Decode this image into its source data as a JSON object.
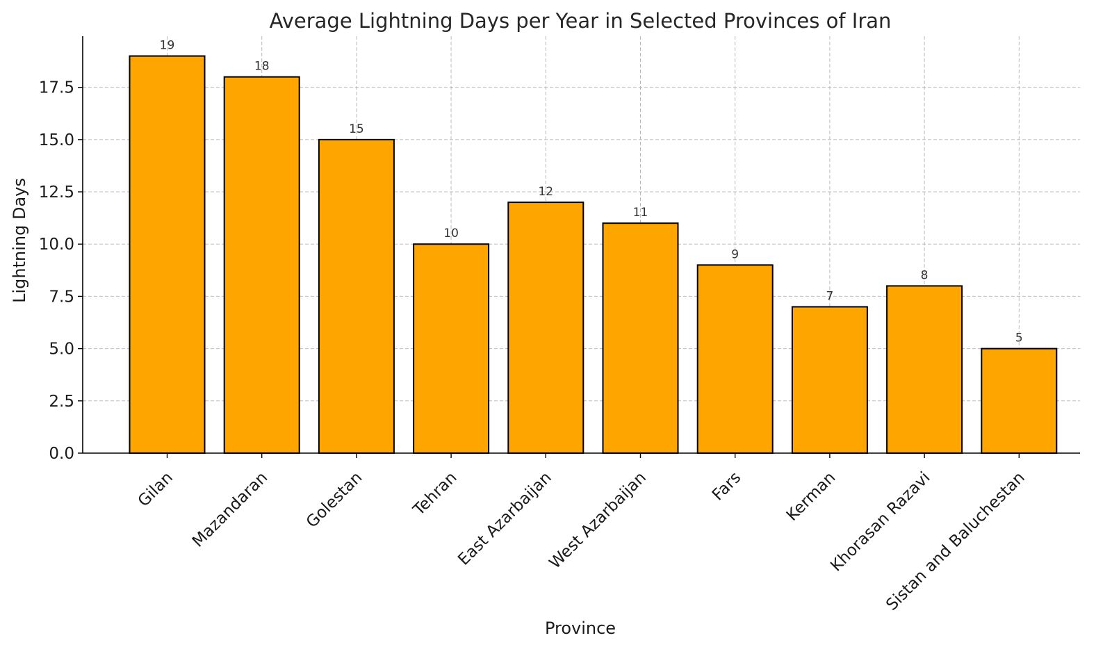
{
  "chart_data": {
    "type": "bar",
    "title": "Average Lightning Days per Year in Selected Provinces of Iran",
    "xlabel": "Province",
    "ylabel": "Lightning Days",
    "categories": [
      "Gilan",
      "Mazandaran",
      "Golestan",
      "Tehran",
      "East Azarbaijan",
      "West Azarbaijan",
      "Fars",
      "Kerman",
      "Khorasan Razavi",
      "Sistan and Baluchestan"
    ],
    "values": [
      19,
      18,
      15,
      10,
      12,
      11,
      9,
      7,
      8,
      5
    ],
    "data_labels": [
      "19",
      "18",
      "15",
      "10",
      "12",
      "11",
      "9",
      "7",
      "8",
      "5"
    ],
    "ylim": [
      0,
      19.95
    ],
    "yticks": [
      0,
      2.5,
      5,
      7.5,
      10,
      12.5,
      15,
      17.5
    ],
    "ytick_labels": [
      "0.0",
      "2.5",
      "5.0",
      "7.5",
      "10.0",
      "12.5",
      "15.0",
      "17.5"
    ],
    "grid": true,
    "legend": "none",
    "bar_color": "#FFA500",
    "edge_color": "#000000"
  }
}
